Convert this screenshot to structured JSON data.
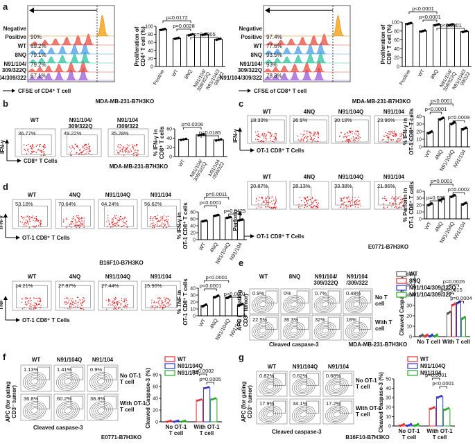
{
  "figure": {
    "panel_labels": [
      "a",
      "b",
      "c",
      "d",
      "e",
      "f",
      "g"
    ],
    "cell_lines": {
      "a": "MDA-MB-231-B7H3KO",
      "b": "MDA-MB-231-B7H3KO",
      "c": "E0771-B7H3KO",
      "d": "B16F10-B7H3KO",
      "e": "MDA-MB-231-B7H3KO",
      "f": "E0771-B7H3KO",
      "g": "B16F10-B7H3KO"
    },
    "axis_texts": {
      "cd8": "CD8⁺ T Cells",
      "ot1": "OT-1 CD8⁺ T Cells",
      "ifn": "IFN-γ",
      "perforin": "Perforin",
      "tnf": "TNF",
      "cleaved": "Cleaved caspase-3",
      "apc1": "APC (for gating",
      "apc2": "CD3⁻ tumor)",
      "cfse4": "CFSE of CD4⁺ T cell",
      "cfse8": "CFSE of CD8⁺ T cell"
    },
    "t_labels": {
      "no_t": [
        "No T",
        "cell"
      ],
      "with_t": [
        "With T",
        "cell"
      ],
      "no_ot1": [
        "No OT-1",
        "T cell"
      ],
      "with_ot1": [
        "With OT-1",
        "T cell"
      ]
    },
    "hist_a_left": {
      "labels": [
        "Negative",
        "Positive",
        "WT",
        "8NQ",
        "N91/104/",
        "309/322Q",
        "N91/104/309/322"
      ],
      "pcts": [
        "90%",
        "69.2%",
        "79.1%",
        "79.2%",
        "67.1%"
      ]
    },
    "hist_a_right": {
      "labels": [
        "Negative",
        "Positive",
        "WT",
        "8NQ",
        "N91/104/",
        "309/322Q",
        "N91/104/309/322"
      ],
      "pcts": [
        "97.4%",
        "77.6%",
        "93.5%",
        "93%",
        "78.3%"
      ]
    },
    "flow_b": {
      "headers": [
        "WT",
        "N91/104/\n309/322Q",
        "N91/104\n/309/322"
      ],
      "pcts": [
        "36.77%",
        "49.22%",
        "35.28%"
      ]
    },
    "flow_c_ifn": {
      "headers": [
        "WT",
        "4NQ",
        "N91/104Q",
        "N91/104"
      ],
      "pcts": [
        "18.33%",
        "36.9%",
        "30.18%",
        "23.96%"
      ]
    },
    "flow_c_perf": {
      "headers": [
        "WT",
        "4NQ",
        "N91/104Q",
        "N91/104"
      ],
      "pcts": [
        "20.87%",
        "28.13%",
        "33.38%",
        "21.96%"
      ]
    },
    "flow_d_ifn": {
      "headers": [
        "WT",
        "4NQ",
        "N91/104Q",
        "N91/104"
      ],
      "pcts": [
        "53.16%",
        "70.64%",
        "64.24%",
        "56.62%"
      ]
    },
    "flow_d_tnf": {
      "headers": [
        "WT",
        "4NQ",
        "N91/104Q",
        "N91/104"
      ],
      "pcts": [
        "14.21%",
        "27.87%",
        "27.44%",
        "15.96%"
      ]
    },
    "flow_e": {
      "headers": [
        "WT",
        "8NQ",
        "N91/104/\n309/322Q",
        "N91/104\n/309/322"
      ],
      "pcts_no": [
        "0.9%",
        "0%",
        "0.7%",
        "0.48%"
      ],
      "pcts_with": [
        "22.5%",
        "36.3%",
        "32%",
        "18%"
      ]
    },
    "flow_f": {
      "headers": [
        "WT",
        "N91/104Q",
        "N91/104"
      ],
      "pcts_no": [
        "1.13%",
        "1.41%",
        "0.9%"
      ],
      "pcts_with": [
        "36.8%",
        "60.2%",
        "38.8%"
      ]
    },
    "flow_g": {
      "headers": [
        "WT",
        "N91/104Q",
        "N91/104"
      ],
      "pcts_no": [
        "0.82%",
        "0.62%",
        "0.68%"
      ],
      "pcts_with": [
        "17.9%",
        "34.1%",
        "17.2%"
      ]
    }
  },
  "chart_data": [
    {
      "id": "a1",
      "type": "bar",
      "ylabel": "Proliferation of\nCD4⁺ T cell (%)",
      "ylim": [
        0,
        100
      ],
      "yticks": [
        0,
        20,
        40,
        60,
        80,
        100
      ],
      "categories": [
        "Positive",
        "WT",
        "8NQ",
        "N91/104/\n309/322Q",
        "N91/104/3\n09/322"
      ],
      "values": [
        92,
        70,
        79,
        80,
        68
      ],
      "brackets": [
        {
          "a": 0,
          "b": 2,
          "label": "p=0.0172"
        },
        {
          "a": 1,
          "b": 2,
          "label": "p=0.0028"
        },
        {
          "a": 2,
          "b": 4,
          "label": "p=0.0005"
        }
      ]
    },
    {
      "id": "a2",
      "type": "bar",
      "ylabel": "Proliferation of\nCD8⁺ T cell (%)",
      "ylim": [
        0,
        100
      ],
      "yticks": [
        0,
        20,
        40,
        60,
        80,
        100
      ],
      "categories": [
        "Positive",
        "WT",
        "8NQ",
        "N91/104/\n309/322Q",
        "N91/104/3\n09/322"
      ],
      "values": [
        97,
        80,
        94,
        94,
        79
      ],
      "brackets": [
        {
          "a": 0,
          "b": 2,
          "label": "p<0.0001"
        },
        {
          "a": 1,
          "b": 2,
          "label": "p<0.0001"
        },
        {
          "a": 2,
          "b": 4,
          "label": "p<0.0001"
        }
      ]
    },
    {
      "id": "b",
      "type": "bar",
      "ylabel": "% IFN-γ in\nCD8⁺ T cells",
      "ylim": [
        0,
        60
      ],
      "yticks": [
        0,
        20,
        40,
        60
      ],
      "categories": [
        "WT",
        "N91/104/\n309/322Q",
        "N91/104\n/309/322"
      ],
      "values": [
        37,
        47,
        36
      ],
      "brackets": [
        {
          "a": 0,
          "b": 1,
          "label": "p=0.0206"
        },
        {
          "a": 1,
          "b": 2,
          "label": "p=0.0185"
        }
      ]
    },
    {
      "id": "c1",
      "type": "bar",
      "ylabel": "% IFN-γ in\nOT-1 CD8⁺ T cells",
      "ylim": [
        0,
        40
      ],
      "yticks": [
        0,
        10,
        20,
        30,
        40
      ],
      "categories": [
        "WT",
        "4NQ",
        "N91/104Q",
        "N91/104"
      ],
      "values": [
        19,
        37,
        31,
        24
      ],
      "brackets": [
        {
          "a": 0,
          "b": 2,
          "label": "p<0.0001"
        },
        {
          "a": 0,
          "b": 1,
          "label": "p<0.0001"
        },
        {
          "a": 2,
          "b": 3,
          "label": "p=0.0009"
        }
      ]
    },
    {
      "id": "c2",
      "type": "bar",
      "ylabel": "% Perforin in\nOT-1 CD8⁺ T cells",
      "ylim": [
        0,
        40
      ],
      "yticks": [
        0,
        10,
        20,
        30,
        40
      ],
      "categories": [
        "WT",
        "4NQ",
        "N91/104Q",
        "N91/104"
      ],
      "values": [
        21,
        28,
        33,
        22
      ],
      "brackets": [
        {
          "a": 0,
          "b": 2,
          "label": "p=0.0001"
        },
        {
          "a": 2,
          "b": 3,
          "label": "p=0.0002"
        },
        {
          "a": 0,
          "b": 1,
          "label": "p=0.035"
        }
      ]
    },
    {
      "id": "d1",
      "type": "bar",
      "ylabel": "% IFN-γ in\nOT-1 CD8⁺ T cells",
      "ylim": [
        0,
        80
      ],
      "yticks": [
        0,
        20,
        40,
        60,
        80
      ],
      "categories": [
        "WT",
        "4NQ",
        "N91/104Q",
        "N91/104"
      ],
      "values": [
        54,
        70,
        64,
        57
      ],
      "brackets": [
        {
          "a": 0,
          "b": 2,
          "label": "p=0.0011"
        },
        {
          "a": 0,
          "b": 1,
          "label": "p<0.0001"
        },
        {
          "a": 2,
          "b": 3,
          "label": "p=0.0425"
        }
      ]
    },
    {
      "id": "d2",
      "type": "bar",
      "ylabel": "% TNF in\nOT-1 CD8⁺ T cells",
      "ylim": [
        0,
        40
      ],
      "yticks": [
        0,
        10,
        20,
        30,
        40
      ],
      "categories": [
        "WT",
        "4NQ",
        "N91/104Q",
        "N91/104"
      ],
      "values": [
        15,
        28,
        27,
        16
      ],
      "brackets": [
        {
          "a": 0,
          "b": 2,
          "label": "p<0.0001"
        },
        {
          "a": 0,
          "b": 1,
          "label": "p<0.0001"
        },
        {
          "a": 2,
          "b": 3,
          "label": "p<0.0001"
        }
      ]
    },
    {
      "id": "e",
      "type": "bar",
      "ylabel": "Cleaved Caspase-3 (%)",
      "ylim": [
        0,
        60
      ],
      "yticks": [
        0,
        10,
        20,
        30,
        40,
        50,
        60
      ],
      "groups": [
        "No T cell",
        "With T cell"
      ],
      "series": [
        {
          "name": "WT",
          "color": "#555555",
          "values": [
            1,
            23
          ]
        },
        {
          "name": "8NQ",
          "color": "#e03030",
          "values": [
            1,
            31
          ]
        },
        {
          "name": "N91/104/309/322Q",
          "color": "#3333cc",
          "values": [
            1,
            33
          ]
        },
        {
          "name": "N91/104/309/322",
          "color": "#22aa22",
          "values": [
            1,
            18
          ]
        }
      ],
      "brackets": [
        {
          "a": 0,
          "b": 2,
          "label": "p=0.0026"
        },
        {
          "a": 0,
          "b": 1,
          "label": "p=0.0015"
        },
        {
          "a": 2,
          "b": 3,
          "label": "p=0.0004"
        }
      ]
    },
    {
      "id": "f",
      "type": "bar",
      "ylabel": "Cleaved Caspase-3 (%)",
      "ylim": [
        0,
        80
      ],
      "yticks": [
        0,
        20,
        40,
        60,
        80
      ],
      "groups": [
        "No OT-1\nT cell",
        "With OT-1\nT cell"
      ],
      "series": [
        {
          "name": "WT",
          "color": "#e03030",
          "values": [
            1,
            37
          ]
        },
        {
          "name": "N91/104Q",
          "color": "#3333cc",
          "values": [
            1,
            58
          ]
        },
        {
          "name": "N91/104",
          "color": "#22aa22",
          "values": [
            1,
            39
          ]
        }
      ],
      "brackets": [
        {
          "a": 0,
          "b": 1,
          "label": "p=0.0002"
        },
        {
          "a": 1,
          "b": 2,
          "label": "p=0.0005"
        }
      ]
    },
    {
      "id": "g",
      "type": "bar",
      "ylabel": "Cleaved Caspase-3 (%)",
      "ylim": [
        0,
        50
      ],
      "yticks": [
        0,
        10,
        20,
        30,
        40,
        50
      ],
      "groups": [
        "No OT-1\nT cell",
        "With OT-1\nT cell"
      ],
      "series": [
        {
          "name": "WT",
          "color": "#e03030",
          "values": [
            1,
            19
          ]
        },
        {
          "name": "N91/104Q",
          "color": "#3333cc",
          "values": [
            1,
            31
          ]
        },
        {
          "name": "N91/104",
          "color": "#22aa22",
          "values": [
            1,
            18
          ]
        }
      ],
      "brackets": [
        {
          "a": 0,
          "b": 1,
          "label": "p=0.0001"
        },
        {
          "a": 1,
          "b": 2,
          "label": "p<0.0001"
        }
      ]
    }
  ]
}
